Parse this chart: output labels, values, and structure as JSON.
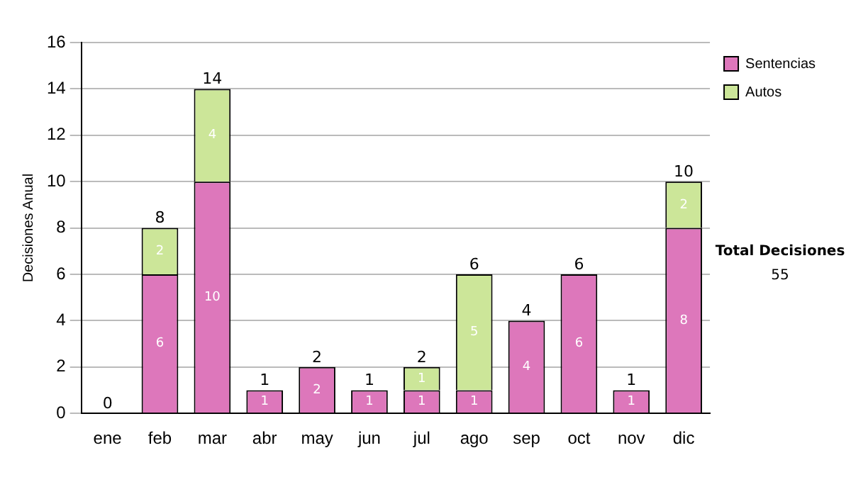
{
  "chart_data": {
    "type": "bar",
    "stacked": true,
    "ylabel": "Decisiones Anual",
    "categories": [
      "ene",
      "feb",
      "mar",
      "abr",
      "may",
      "jun",
      "jul",
      "ago",
      "sep",
      "oct",
      "nov",
      "dic"
    ],
    "series": [
      {
        "name": "Sentencias",
        "color": "#dd77bb",
        "values": [
          0,
          6,
          10,
          1,
          2,
          1,
          1,
          1,
          4,
          6,
          1,
          8
        ],
        "value_labels": [
          null,
          "6",
          "10",
          "1",
          "2",
          "1",
          "1",
          "1",
          "4",
          "6",
          "1",
          "8"
        ]
      },
      {
        "name": "Autos",
        "color": "#cce699",
        "values": [
          0,
          2,
          4,
          0,
          0,
          0,
          1,
          5,
          0,
          0,
          0,
          2
        ],
        "value_labels": [
          null,
          "2",
          "4",
          null,
          null,
          null,
          "1",
          "5",
          null,
          null,
          null,
          "2"
        ]
      }
    ],
    "totals": [
      "0",
      "8",
      "14",
      "1",
      "2",
      "1",
      "2",
      "6",
      "4",
      "6",
      "1",
      "10"
    ],
    "ylim": [
      0,
      16
    ],
    "yticks": [
      0,
      2,
      4,
      6,
      8,
      10,
      12,
      14,
      16
    ],
    "grid": "y",
    "legend": "right",
    "annotations": [
      "Total Decisiones",
      "55"
    ]
  }
}
